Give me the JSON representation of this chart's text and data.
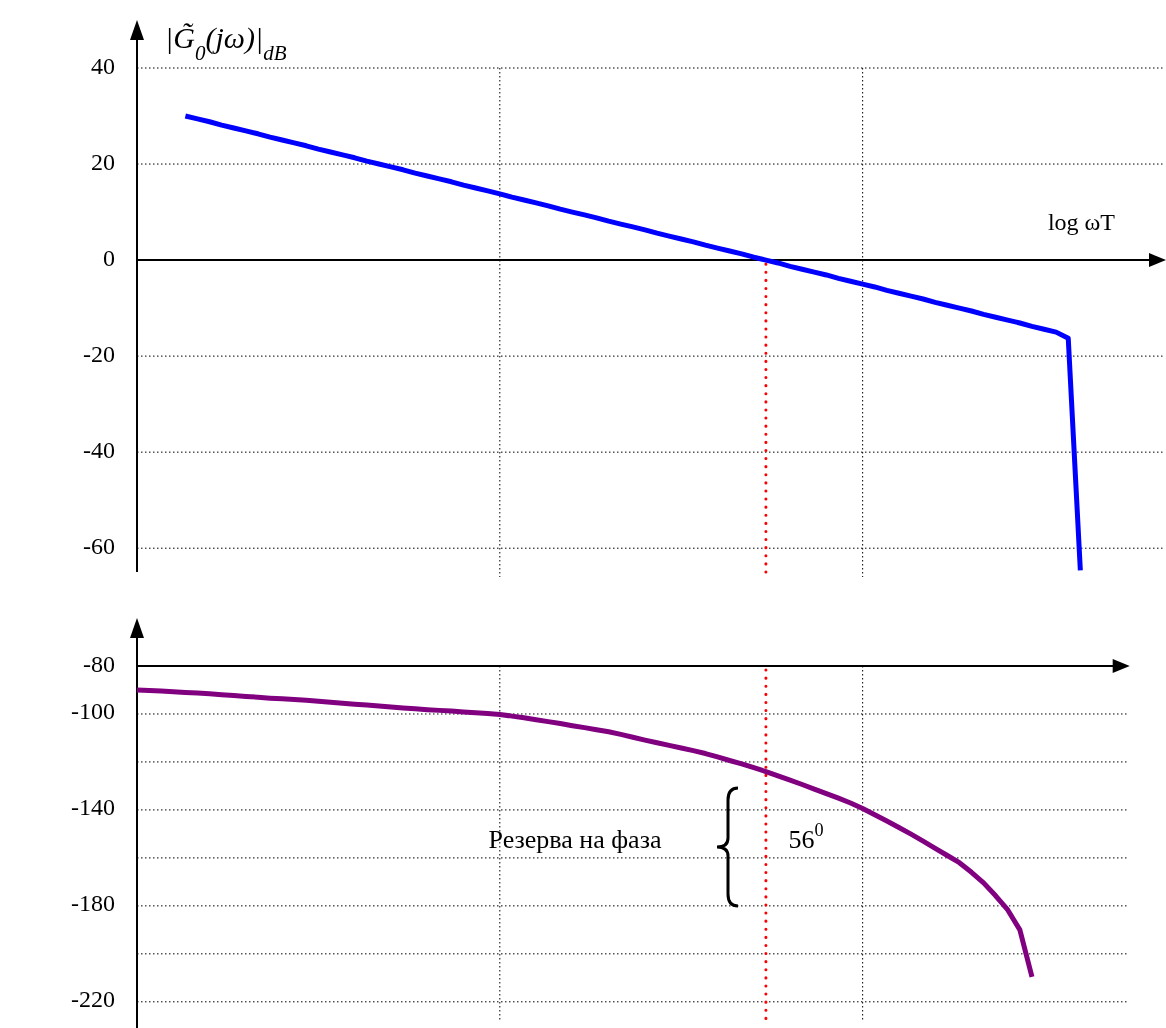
{
  "chart_data": [
    {
      "type": "line",
      "ylabel": "|G̃$_{0}$(jω)|$_{dB}$",
      "xlabel": "log ωT",
      "categories": [
        null,
        null,
        null,
        null,
        null,
        null,
        null,
        null,
        null,
        null,
        null,
        null,
        null,
        null,
        null,
        null,
        null,
        null,
        null,
        null,
        null,
        null,
        null,
        null,
        null,
        null,
        null,
        null,
        null,
        null,
        null,
        null,
        null,
        null,
        null,
        null,
        null,
        null,
        null,
        null,
        null,
        null,
        null,
        null,
        null,
        null,
        null,
        null,
        null,
        null,
        null,
        null,
        null,
        null,
        null,
        null,
        null,
        null,
        null,
        null,
        null,
        null,
        null,
        null,
        null,
        null,
        null,
        null,
        null,
        null,
        null,
        null,
        null,
        null,
        null,
        null,
        null,
        null,
        null,
        null,
        null,
        null,
        null,
        null,
        null,
        null
      ],
      "ylim": [
        -66,
        40
      ],
      "yticks": [
        40,
        20,
        0,
        -20,
        -40,
        -60
      ],
      "grid": true,
      "tick_labels": "y",
      "series": [
        {
          "color": "#0000ff",
          "values": [
            null,
            null,
            null,
            null,
            30,
            29.4,
            28.8,
            28.1,
            27.5,
            26.9,
            26.3,
            25.6,
            25,
            24.4,
            23.8,
            23.1,
            22.5,
            21.9,
            21.3,
            20.6,
            20,
            19.4,
            18.8,
            18.1,
            17.5,
            16.9,
            16.3,
            15.6,
            15,
            14.4,
            13.8,
            13.1,
            12.5,
            11.9,
            11.3,
            10.6,
            10,
            9.4,
            8.8,
            8.1,
            7.5,
            6.9,
            6.3,
            5.6,
            5,
            4.4,
            3.8,
            3.1,
            2.5,
            1.9,
            1.3,
            0.6,
            0,
            -0.6,
            -1.3,
            -1.9,
            -2.5,
            -3.1,
            -3.8,
            -4.4,
            -5,
            -5.6,
            -6.3,
            -6.9,
            -7.5,
            -8.1,
            -8.8,
            -9.4,
            -10,
            -10.6,
            -11.3,
            -11.9,
            -12.5,
            -13.1,
            -13.8,
            -14.4,
            -15,
            -16.3,
            -64.6,
            null,
            null,
            null,
            null,
            null,
            null,
            null
          ]
        }
      ]
    },
    {
      "type": "line",
      "categories": [
        null,
        null,
        null,
        null,
        null,
        null,
        null,
        null,
        null,
        null,
        null,
        null,
        null,
        null,
        null,
        null,
        null,
        null,
        null,
        null,
        null,
        null,
        null,
        null,
        null,
        null,
        null,
        null,
        null,
        null,
        null,
        null,
        null,
        null,
        null,
        null,
        null,
        null,
        null,
        null,
        null,
        null,
        null,
        null,
        null,
        null,
        null,
        null,
        null,
        null,
        null,
        null,
        null,
        null,
        null,
        null,
        null,
        null,
        null,
        null,
        null,
        null,
        null,
        null,
        null,
        null,
        null,
        null,
        null,
        null,
        null,
        null,
        null,
        null,
        null,
        null,
        null,
        null,
        null,
        null,
        null,
        null,
        null
      ],
      "ylim": [
        -228,
        -80
      ],
      "yticks": [
        -80,
        -100,
        {
          "value": -120,
          "label": null
        },
        -140,
        {
          "value": -160,
          "label": null
        },
        -180,
        {
          "value": -200,
          "label": null
        },
        -220
      ],
      "grid": true,
      "tick_labels": "y",
      "series": [
        {
          "color": "#800080",
          "values": [
            -90,
            -90.2,
            -90.4,
            -90.7,
            -91,
            -91.3,
            -91.6,
            -92,
            -92.3,
            -92.7,
            -93,
            -93.4,
            -93.7,
            -94,
            -94.3,
            -94.7,
            -95.1,
            -95.5,
            -95.9,
            -96.3,
            -96.7,
            -97.1,
            -97.5,
            -97.8,
            -98.2,
            -98.5,
            -98.8,
            -99.2,
            -99.5,
            -99.8,
            -100.2,
            -100.9,
            -101.6,
            -102.4,
            -103.2,
            -104,
            -104.9,
            -105.7,
            -106.6,
            -107.4,
            -108.5,
            -109.7,
            -110.9,
            -112,
            -113.1,
            -114.2,
            -115.3,
            -116.5,
            -117.9,
            -119.4,
            -120.8,
            -122.4,
            -124,
            -125.8,
            -127.6,
            -129.4,
            -131.3,
            -133.2,
            -135.1,
            -137.1,
            -139.4,
            -142,
            -144.6,
            -147.3,
            -150.1,
            -153,
            -156,
            -159,
            -162,
            -166,
            -170.4,
            -175.8,
            -181.7,
            -190,
            -209.6,
            null,
            null,
            null,
            null,
            null,
            null,
            null,
            null
          ]
        }
      ],
      "annotations": [
        "Резерва на фаза",
        "56$^{0}$"
      ]
    }
  ]
}
